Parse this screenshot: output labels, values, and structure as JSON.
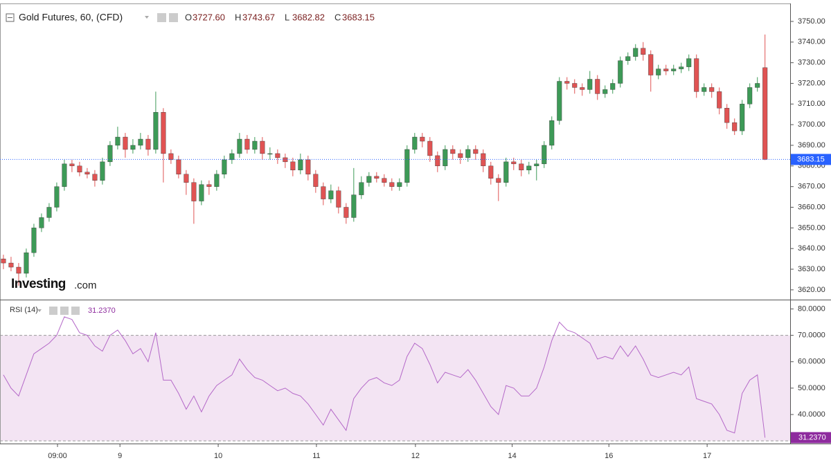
{
  "chart_data": {
    "type": "candlestick",
    "title": "Gold Futures, 60, (CFD)",
    "header": [
      {
        "key": "O",
        "label": "3727.60"
      },
      {
        "key": "H",
        "label": "3743.67"
      },
      {
        "key": "L",
        "label": "3682.82"
      },
      {
        "key": "C",
        "label": "3683.15"
      }
    ],
    "watermark": {
      "brand": "Investing",
      "suffix": ".com"
    },
    "up_color": "#3d9a57",
    "down_color": "#e05353",
    "price_line_color": "#2962ff",
    "ohlc": [
      [
        3635,
        3637,
        3630,
        3633
      ],
      [
        3633,
        3636,
        3629,
        3631
      ],
      [
        3631,
        3633,
        3622,
        3628
      ],
      [
        3628,
        3640,
        3626,
        3638
      ],
      [
        3638,
        3652,
        3636,
        3650
      ],
      [
        3650,
        3657,
        3648,
        3655
      ],
      [
        3655,
        3662,
        3653,
        3660
      ],
      [
        3660,
        3672,
        3658,
        3670
      ],
      [
        3670,
        3683,
        3668,
        3681
      ],
      [
        3681,
        3683,
        3677,
        3680
      ],
      [
        3680,
        3682,
        3675,
        3677
      ],
      [
        3677,
        3679,
        3674,
        3676
      ],
      [
        3676,
        3678,
        3670,
        3673
      ],
      [
        3673,
        3684,
        3671,
        3682
      ],
      [
        3682,
        3692,
        3680,
        3690
      ],
      [
        3690,
        3699,
        3688,
        3694
      ],
      [
        3694,
        3696,
        3684,
        3688
      ],
      [
        3688,
        3693,
        3686,
        3690
      ],
      [
        3690,
        3696,
        3688,
        3693
      ],
      [
        3693,
        3695,
        3685,
        3688
      ],
      [
        3688,
        3716,
        3686,
        3706
      ],
      [
        3706,
        3708,
        3672,
        3686
      ],
      [
        3686,
        3688,
        3681,
        3683
      ],
      [
        3683,
        3685,
        3674,
        3676
      ],
      [
        3676,
        3678,
        3666,
        3672
      ],
      [
        3672,
        3674,
        3652,
        3663
      ],
      [
        3663,
        3673,
        3661,
        3671
      ],
      [
        3671,
        3673,
        3666,
        3670
      ],
      [
        3670,
        3678,
        3668,
        3676
      ],
      [
        3676,
        3685,
        3674,
        3683
      ],
      [
        3683,
        3688,
        3681,
        3686
      ],
      [
        3686,
        3696,
        3684,
        3693
      ],
      [
        3693,
        3695,
        3686,
        3688
      ],
      [
        3688,
        3694,
        3686,
        3692
      ],
      [
        3692,
        3694,
        3683,
        3686
      ],
      [
        3686,
        3689,
        3683,
        3686
      ],
      [
        3686,
        3688,
        3681,
        3684
      ],
      [
        3684,
        3686,
        3679,
        3682
      ],
      [
        3682,
        3684,
        3675,
        3678
      ],
      [
        3678,
        3686,
        3676,
        3683
      ],
      [
        3683,
        3685,
        3673,
        3676
      ],
      [
        3676,
        3678,
        3667,
        3670
      ],
      [
        3670,
        3672,
        3661,
        3664
      ],
      [
        3664,
        3671,
        3662,
        3668
      ],
      [
        3668,
        3670,
        3657,
        3660
      ],
      [
        3660,
        3662,
        3652,
        3655
      ],
      [
        3655,
        3679,
        3653,
        3666
      ],
      [
        3666,
        3675,
        3664,
        3672
      ],
      [
        3672,
        3677,
        3670,
        3675
      ],
      [
        3675,
        3677,
        3672,
        3674
      ],
      [
        3674,
        3676,
        3670,
        3672
      ],
      [
        3672,
        3674,
        3668,
        3670
      ],
      [
        3670,
        3674,
        3668,
        3672
      ],
      [
        3672,
        3690,
        3670,
        3688
      ],
      [
        3688,
        3696,
        3686,
        3694
      ],
      [
        3694,
        3696,
        3689,
        3692
      ],
      [
        3692,
        3694,
        3682,
        3685
      ],
      [
        3685,
        3687,
        3677,
        3680
      ],
      [
        3680,
        3690,
        3678,
        3688
      ],
      [
        3688,
        3690,
        3683,
        3686
      ],
      [
        3686,
        3688,
        3681,
        3684
      ],
      [
        3684,
        3690,
        3682,
        3688
      ],
      [
        3688,
        3690,
        3683,
        3686
      ],
      [
        3686,
        3688,
        3677,
        3680
      ],
      [
        3680,
        3682,
        3671,
        3674
      ],
      [
        3674,
        3676,
        3663,
        3672
      ],
      [
        3672,
        3684,
        3670,
        3682
      ],
      [
        3682,
        3684,
        3678,
        3681
      ],
      [
        3681,
        3683,
        3675,
        3678
      ],
      [
        3678,
        3682,
        3676,
        3680
      ],
      [
        3680,
        3683,
        3673,
        3681
      ],
      [
        3681,
        3692,
        3679,
        3690
      ],
      [
        3690,
        3704,
        3688,
        3702
      ],
      [
        3702,
        3723,
        3700,
        3721
      ],
      [
        3721,
        3723,
        3717,
        3720
      ],
      [
        3720,
        3722,
        3715,
        3718
      ],
      [
        3718,
        3720,
        3714,
        3717
      ],
      [
        3717,
        3726,
        3715,
        3722
      ],
      [
        3722,
        3724,
        3712,
        3715
      ],
      [
        3715,
        3719,
        3713,
        3717
      ],
      [
        3717,
        3722,
        3715,
        3720
      ],
      [
        3720,
        3733,
        3718,
        3731
      ],
      [
        3731,
        3735,
        3729,
        3733
      ],
      [
        3733,
        3739,
        3731,
        3737
      ],
      [
        3737,
        3740,
        3731,
        3734
      ],
      [
        3734,
        3736,
        3716,
        3724
      ],
      [
        3724,
        3729,
        3722,
        3727
      ],
      [
        3727,
        3729,
        3724,
        3726
      ],
      [
        3726,
        3729,
        3724,
        3727
      ],
      [
        3727,
        3730,
        3725,
        3728
      ],
      [
        3728,
        3734,
        3726,
        3732
      ],
      [
        3732,
        3734,
        3713,
        3716
      ],
      [
        3716,
        3720,
        3714,
        3718
      ],
      [
        3718,
        3720,
        3713,
        3716
      ],
      [
        3716,
        3718,
        3705,
        3708
      ],
      [
        3708,
        3710,
        3698,
        3701
      ],
      [
        3701,
        3703,
        3695,
        3697
      ],
      [
        3697,
        3712,
        3695,
        3710
      ],
      [
        3710,
        3720,
        3708,
        3718
      ],
      [
        3718,
        3723,
        3716,
        3720
      ],
      [
        3727.6,
        3743.67,
        3682.82,
        3683.15
      ]
    ],
    "xlim": [
      -0.45,
      103.3
    ],
    "xticks": [
      {
        "value": 7.1,
        "label": "09:00"
      },
      {
        "value": 15.3,
        "label": "9"
      },
      {
        "value": 28.2,
        "label": "10"
      },
      {
        "value": 41.1,
        "label": "11"
      },
      {
        "value": 54.1,
        "label": "12"
      },
      {
        "value": 66.8,
        "label": "14"
      },
      {
        "value": 79.5,
        "label": "16"
      },
      {
        "value": 92.4,
        "label": "17"
      }
    ],
    "ylim": [
      3615.6,
      3758.7
    ],
    "yticks": [
      {
        "value": 3620,
        "label": "3620.00"
      },
      {
        "value": 3630,
        "label": "3630.00"
      },
      {
        "value": 3640,
        "label": "3640.00"
      },
      {
        "value": 3650,
        "label": "3650.00"
      },
      {
        "value": 3660,
        "label": "3660.00"
      },
      {
        "value": 3670,
        "label": "3670.00"
      },
      {
        "value": 3680,
        "label": "3680.00"
      },
      {
        "value": 3690,
        "label": "3690.00"
      },
      {
        "value": 3700,
        "label": "3700.00"
      },
      {
        "value": 3710,
        "label": "3710.00"
      },
      {
        "value": 3720,
        "label": "3720.00"
      },
      {
        "value": 3730,
        "label": "3730.00"
      },
      {
        "value": 3740,
        "label": "3740.00"
      },
      {
        "value": 3750,
        "label": "3750.00"
      }
    ],
    "rsi": {
      "type": "line",
      "title": "RSI (14)",
      "color": "#b468c8",
      "band_color": "#f3e4f3",
      "bands": [
        30,
        70
      ],
      "value_label": "31.2370",
      "values": [
        55,
        50,
        47,
        55,
        63,
        65,
        67,
        70,
        77,
        76,
        71,
        70,
        66,
        64,
        70,
        72,
        68,
        63,
        65,
        60,
        71,
        53,
        53,
        48,
        42,
        47,
        41,
        47,
        51,
        53,
        55,
        61,
        57,
        54,
        53,
        51,
        49,
        50,
        48,
        47,
        44,
        40,
        36,
        42,
        38,
        34,
        46,
        50,
        53,
        54,
        52,
        51,
        53,
        62,
        67,
        65,
        59,
        52,
        56,
        55,
        54,
        57,
        53,
        48,
        43,
        40,
        51,
        50,
        47,
        47,
        50,
        58,
        68,
        75,
        72,
        71,
        69,
        67,
        61,
        62,
        61,
        66,
        62,
        66,
        61,
        55,
        54,
        55,
        56,
        55,
        58,
        46,
        45,
        44,
        40,
        34,
        33,
        48,
        53,
        55,
        31.237
      ],
      "ylim": [
        29,
        83
      ],
      "yticks": [
        {
          "value": 40,
          "label": "40.0000"
        },
        {
          "value": 50,
          "label": "50.0000"
        },
        {
          "value": 60,
          "label": "60.0000"
        },
        {
          "value": 70,
          "label": "70.0000"
        },
        {
          "value": 80,
          "label": "80.0000"
        }
      ]
    }
  }
}
